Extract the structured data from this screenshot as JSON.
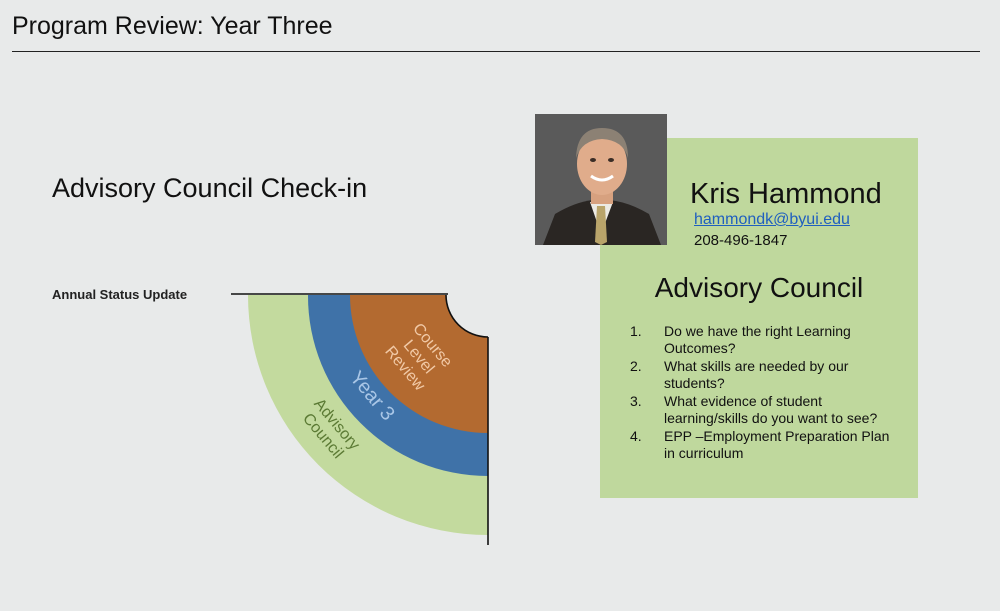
{
  "slide": {
    "title": "Program Review: Year Three"
  },
  "left": {
    "heading": "Advisory Council Check-in",
    "status_label": "Annual Status Update"
  },
  "diagram": {
    "rings": [
      {
        "label_lines": [
          "Advisory",
          "Council"
        ],
        "color": "#c3da9e",
        "text_color": "#5b7a34"
      },
      {
        "label_lines": [
          "Year 3"
        ],
        "color": "#3f72a8",
        "text_color": "#a9c6e6"
      },
      {
        "label_lines": [
          "Course",
          "Level",
          "Review"
        ],
        "color": "#b36a30",
        "text_color": "#f1c9a6"
      }
    ]
  },
  "contact": {
    "name": "Kris Hammond",
    "email": "hammondk@byui.edu",
    "phone": "208-496-1847"
  },
  "council": {
    "heading": "Advisory Council",
    "questions": [
      {
        "num": "1.",
        "text": "Do we have the right Learning Outcomes?"
      },
      {
        "num": "2.",
        "text": "What skills are needed by our students?"
      },
      {
        "num": "3.",
        "text": "What evidence of student learning/skills do you want to see?"
      },
      {
        "num": "4.",
        "text": "EPP –Employment Preparation Plan in curriculum"
      }
    ]
  },
  "colors": {
    "card_background": "#bfd89d",
    "link": "#1f5fbf"
  }
}
